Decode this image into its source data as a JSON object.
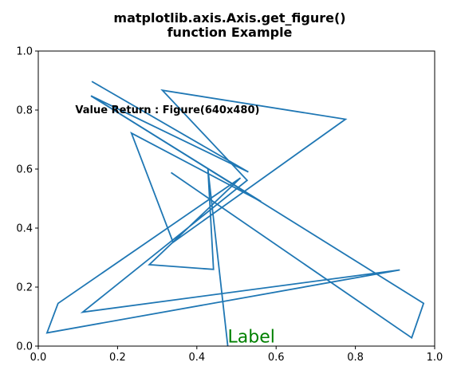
{
  "chart_data": {
    "type": "line",
    "title_lines": [
      "matplotlib.axis.Axis.get_figure()",
      "function Example"
    ],
    "xlabel": "",
    "ylabel": "",
    "xlim": [
      0.0,
      1.0
    ],
    "ylim": [
      0.0,
      1.0
    ],
    "x_ticks": [
      "0.0",
      "0.2",
      "0.4",
      "0.6",
      "0.8",
      "1.0"
    ],
    "y_ticks": [
      "0.0",
      "0.2",
      "0.4",
      "0.6",
      "0.8",
      "1.0"
    ],
    "grid": false,
    "color": "#1f77b4",
    "series": [
      {
        "x": [
          0.135,
          0.53,
          0.133,
          0.562,
          0.235,
          0.34,
          0.775,
          0.313,
          0.527,
          0.112,
          0.912,
          0.022,
          0.05,
          0.51,
          0.28,
          0.442,
          0.428,
          0.478
        ],
        "y": [
          0.897,
          0.59,
          0.848,
          0.49,
          0.722,
          0.352,
          0.769,
          0.867,
          0.562,
          0.115,
          0.258,
          0.045,
          0.145,
          0.57,
          0.276,
          0.26,
          0.6,
          0.0
        ]
      },
      {
        "x": [
          0.133,
          0.972,
          0.942,
          0.335
        ],
        "y": [
          0.848,
          0.145,
          0.028,
          0.588
        ]
      }
    ],
    "annotations": [
      {
        "text": "Value Return : Figure(640x480)",
        "x": 0.2,
        "y": 0.8,
        "style": "bold"
      },
      {
        "text": "Label",
        "x": 0.48,
        "y": 0.01,
        "color": "#008000"
      }
    ]
  }
}
